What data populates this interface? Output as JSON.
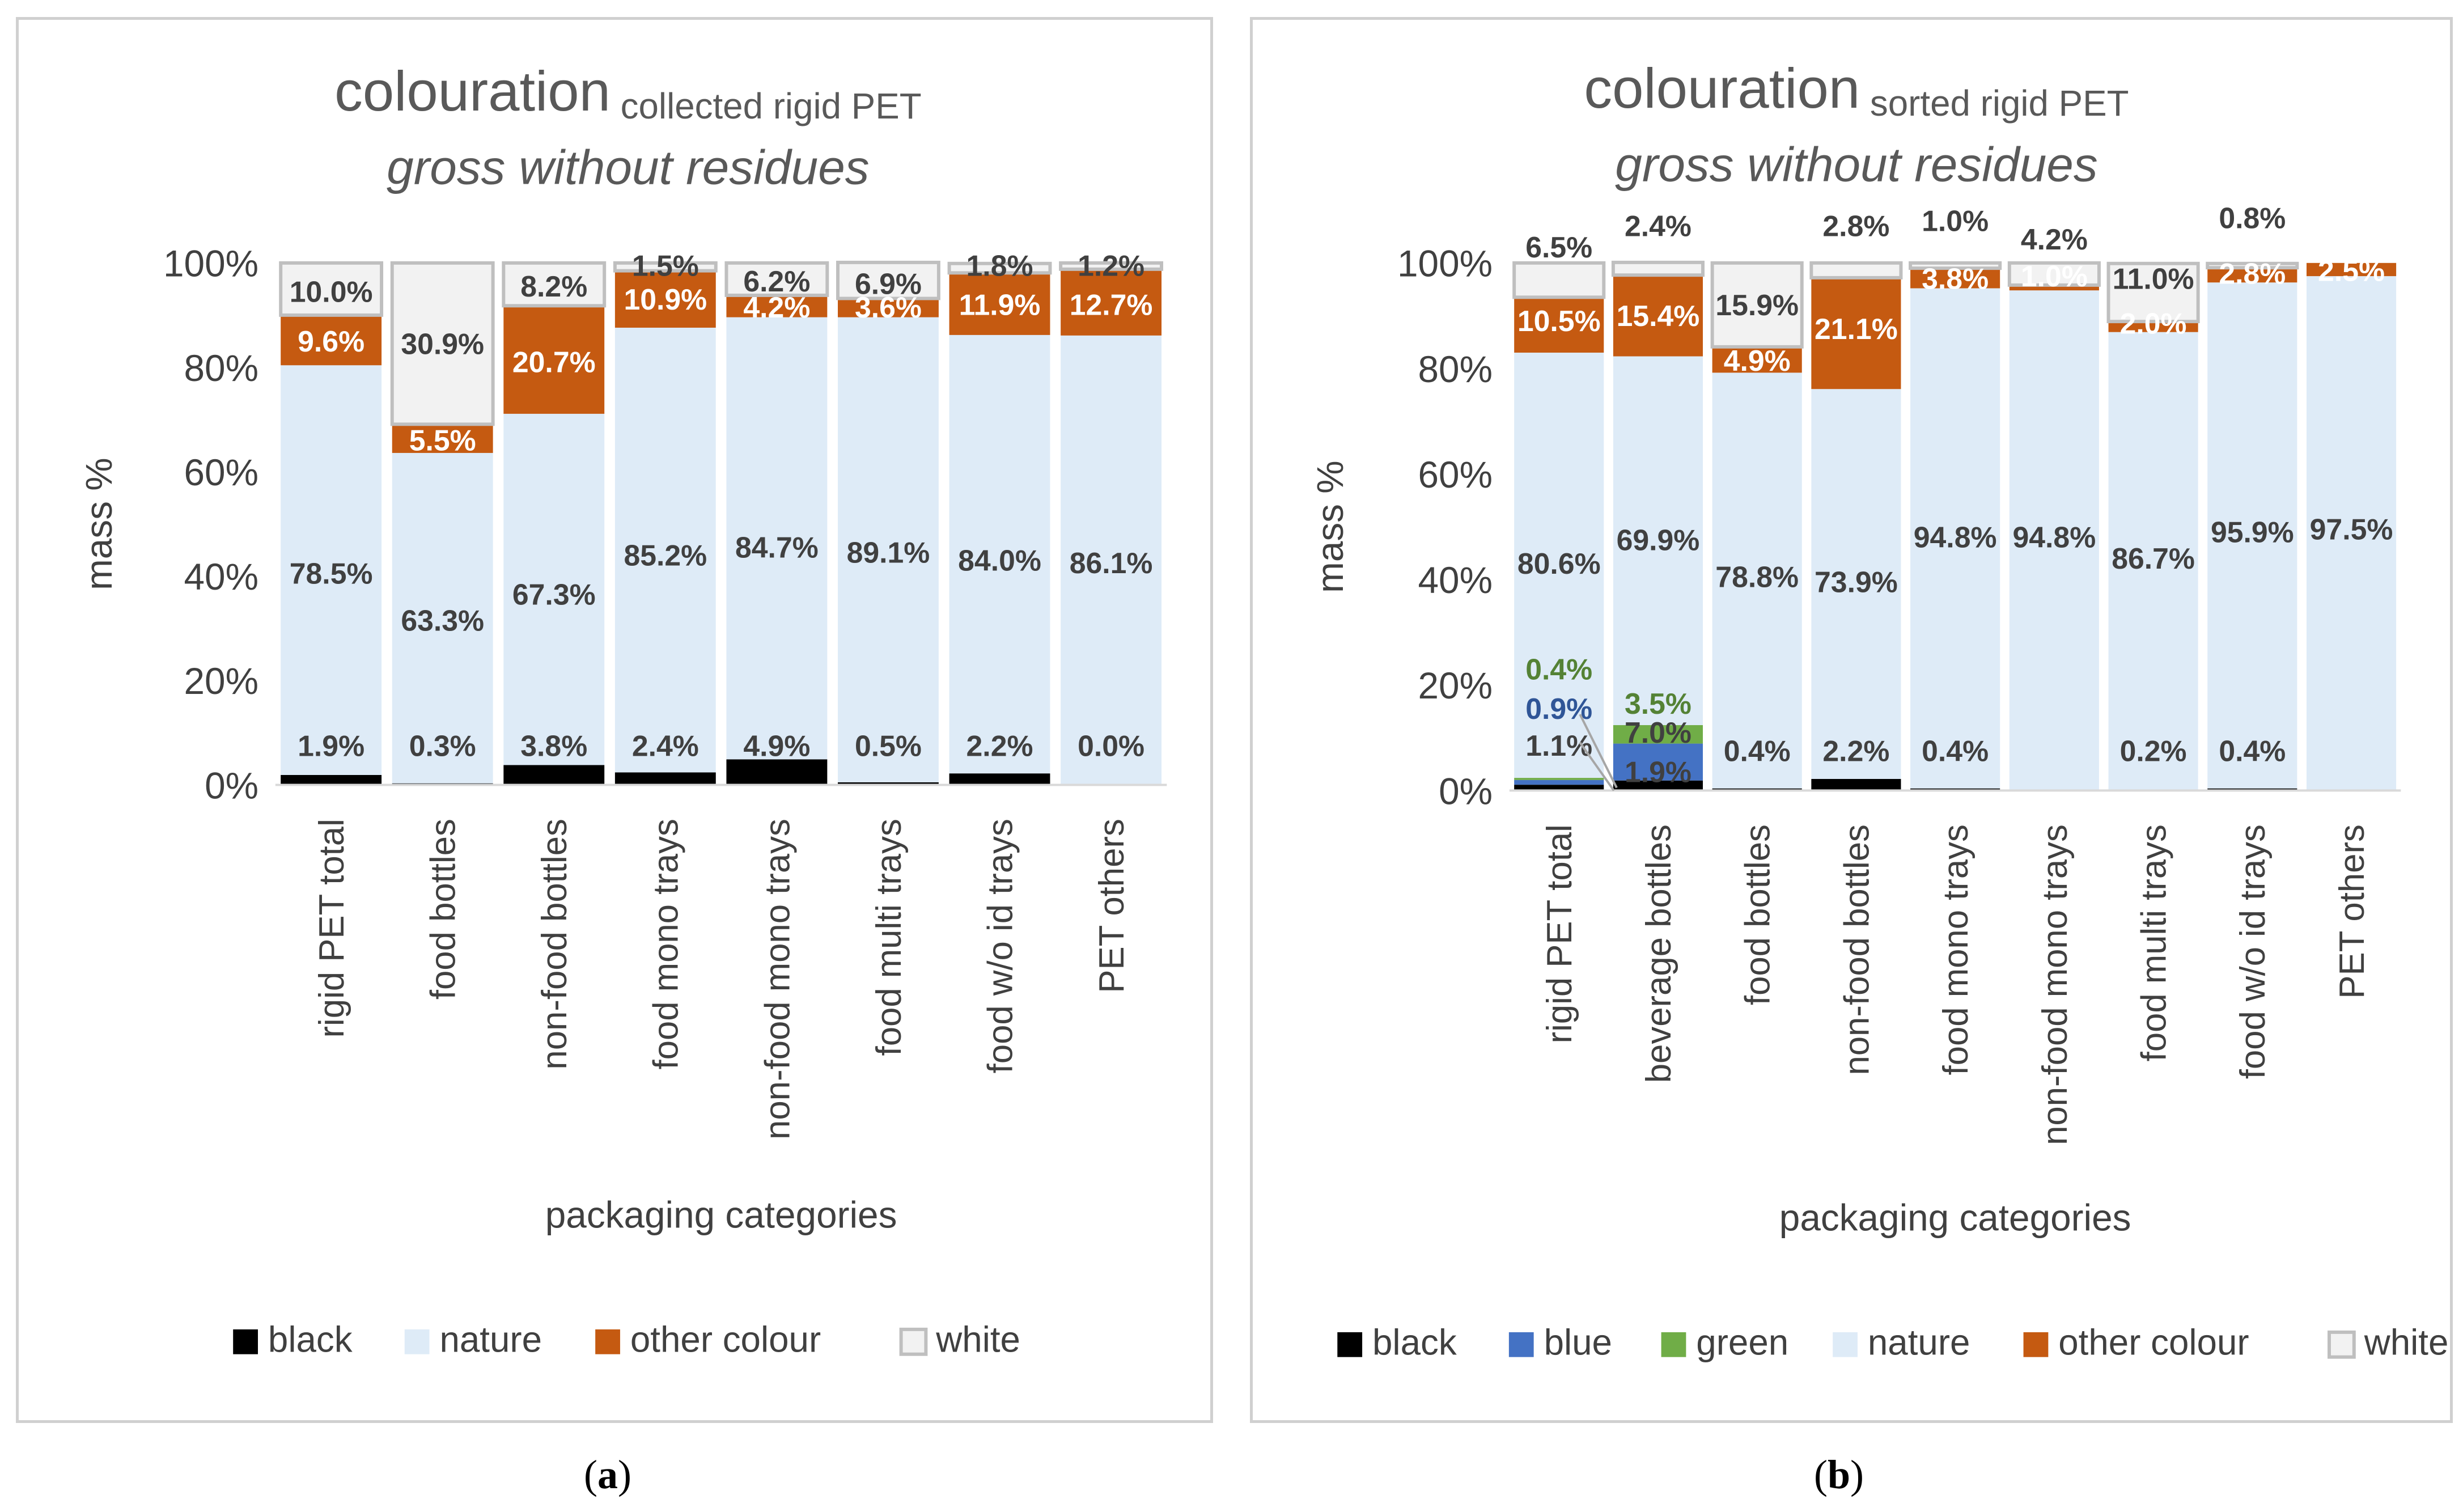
{
  "captions": {
    "a": "a",
    "b": "b"
  },
  "colors": {
    "black": "#000000",
    "blue": "#4472C4",
    "green": "#70AD47",
    "nature": "#DEEBF7",
    "other colour": "#C55A11",
    "white": "#F2F2F2",
    "white_border": "#BFBFBF",
    "axis": "#D9D9D9",
    "text": "#404040"
  },
  "chart_data": [
    {
      "type": "bar",
      "stacked": true,
      "title_main": "colouration",
      "title_sub": "collected rigid PET",
      "title_line2": "gross without residues",
      "xlabel": "packaging categories",
      "ylabel": "mass %",
      "ylim": [
        0,
        100
      ],
      "yticks": [
        "0%",
        "20%",
        "40%",
        "60%",
        "80%",
        "100%"
      ],
      "categories": [
        "rigid PET total",
        "food bottles",
        "non-food bottles",
        "food mono trays",
        "non-food mono trays",
        "food multi trays",
        "food w/o id trays",
        "PET others"
      ],
      "series": [
        {
          "name": "black",
          "values": [
            1.9,
            0.3,
            3.8,
            2.4,
            4.9,
            0.5,
            2.2,
            0.0
          ],
          "labels": [
            "1.9%",
            "0.3%",
            "3.8%",
            "2.4%",
            "4.9%",
            "0.5%",
            "2.2%",
            "0.0%"
          ]
        },
        {
          "name": "nature",
          "values": [
            78.5,
            63.3,
            67.3,
            85.2,
            84.7,
            89.1,
            84.0,
            86.1
          ],
          "labels": [
            "78.5%",
            "63.3%",
            "67.3%",
            "85.2%",
            "84.7%",
            "89.1%",
            "84.0%",
            "86.1%"
          ]
        },
        {
          "name": "other colour",
          "values": [
            9.6,
            5.5,
            20.7,
            10.9,
            4.2,
            3.6,
            11.9,
            12.7
          ],
          "labels": [
            "9.6%",
            "5.5%",
            "20.7%",
            "10.9%",
            "4.2%",
            "3.6%",
            "11.9%",
            "12.7%"
          ]
        },
        {
          "name": "white",
          "values": [
            10.0,
            30.9,
            8.2,
            1.5,
            6.2,
            6.9,
            1.8,
            1.2
          ],
          "labels": [
            "10.0%",
            "30.9%",
            "8.2%",
            "1.5%",
            "6.2%",
            "6.9%",
            "1.8%",
            "1.2%"
          ]
        }
      ],
      "legend": [
        "black",
        "nature",
        "other colour",
        "white"
      ]
    },
    {
      "type": "bar",
      "stacked": true,
      "title_main": "colouration",
      "title_sub": "sorted rigid PET",
      "title_line2": "gross without residues",
      "xlabel": "packaging categories",
      "ylabel": "mass %",
      "ylim": [
        0,
        100
      ],
      "yticks": [
        "0%",
        "20%",
        "40%",
        "60%",
        "80%",
        "100%"
      ],
      "categories": [
        "rigid PET total",
        "beverage bottles",
        "food bottles",
        "non-food bottles",
        "food mono trays",
        "non-food mono trays",
        "food multi trays",
        "food w/o id trays",
        "PET others"
      ],
      "series": [
        {
          "name": "black",
          "values": [
            1.1,
            1.9,
            0.4,
            2.2,
            0.4,
            0.0,
            0.2,
            0.4,
            0.0
          ],
          "labels": [
            "1.1%",
            "1.9%",
            "0.4%",
            "2.2%",
            "0.4%",
            "",
            "0.2%",
            "0.4%",
            ""
          ]
        },
        {
          "name": "blue",
          "values": [
            0.9,
            7.0,
            0,
            0,
            0,
            0,
            0,
            0,
            0
          ],
          "labels": [
            "0.9%",
            "7.0%",
            "",
            "",
            "",
            "",
            "",
            "",
            ""
          ]
        },
        {
          "name": "green",
          "values": [
            0.4,
            3.5,
            0,
            0,
            0,
            0,
            0,
            0,
            0
          ],
          "labels": [
            "0.4%",
            "3.5%",
            "",
            "",
            "",
            "",
            "",
            "",
            ""
          ]
        },
        {
          "name": "nature",
          "values": [
            80.6,
            69.9,
            78.8,
            73.9,
            94.8,
            94.8,
            86.7,
            95.9,
            97.5
          ],
          "labels": [
            "80.6%",
            "69.9%",
            "78.8%",
            "73.9%",
            "94.8%",
            "94.8%",
            "86.7%",
            "95.9%",
            "97.5%"
          ]
        },
        {
          "name": "other colour",
          "values": [
            10.5,
            15.4,
            4.9,
            21.1,
            3.8,
            1.0,
            2.0,
            2.8,
            2.5
          ],
          "labels": [
            "10.5%",
            "15.4%",
            "4.9%",
            "21.1%",
            "3.8%",
            "1.0%",
            "2.0%",
            "2.8%",
            "2.5%"
          ]
        },
        {
          "name": "white",
          "values": [
            6.5,
            2.4,
            15.9,
            2.8,
            1.0,
            4.2,
            11.0,
            0.8,
            0
          ],
          "labels": [
            "6.5%",
            "2.4%",
            "15.9%",
            "2.8%",
            "1.0%",
            "4.2%",
            "11.0%",
            "0.8%",
            ""
          ]
        }
      ],
      "legend": [
        "black",
        "blue",
        "green",
        "nature",
        "other colour",
        "white"
      ]
    }
  ]
}
